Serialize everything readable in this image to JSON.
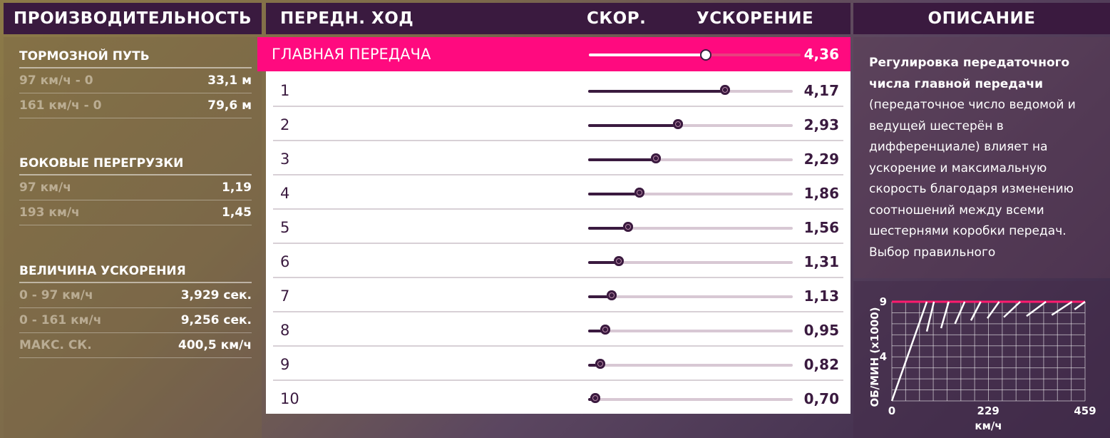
{
  "performance": {
    "header": "ПРОИЗВОДИТЕЛЬНОСТЬ",
    "sections": [
      {
        "title": "ТОРМОЗНОЙ ПУТЬ",
        "rows": [
          {
            "label": "97 км/ч - 0",
            "value": "33,1 м"
          },
          {
            "label": "161 км/ч - 0",
            "value": "79,6 м"
          }
        ]
      },
      {
        "title": "БОКОВЫЕ ПЕРЕГРУЗКИ",
        "rows": [
          {
            "label": "97 км/ч",
            "value": "1,19"
          },
          {
            "label": "193 км/ч",
            "value": "1,45"
          }
        ]
      },
      {
        "title": "ВЕЛИЧИНА УСКОРЕНИЯ",
        "rows": [
          {
            "label": "0 - 97 км/ч",
            "value": "3,929 сек."
          },
          {
            "label": "0 - 161 км/ч",
            "value": "9,256 сек."
          },
          {
            "label": "МАКС. СК.",
            "value": "400,5 км/ч"
          }
        ]
      }
    ]
  },
  "gearing": {
    "header": "ПЕРЕДН. ХОД",
    "col_speed": "СКОР.",
    "col_accel": "УСКОРЕНИЕ",
    "final_drive": {
      "label": "ГЛАВНАЯ ПЕРЕДАЧА",
      "value": "4,36",
      "level": 0.55
    },
    "gears": [
      {
        "label": "1",
        "value": "4,17",
        "level": 0.67
      },
      {
        "label": "2",
        "value": "2,93",
        "level": 0.44
      },
      {
        "label": "3",
        "value": "2,29",
        "level": 0.33
      },
      {
        "label": "4",
        "value": "1,86",
        "level": 0.25
      },
      {
        "label": "5",
        "value": "1,56",
        "level": 0.195
      },
      {
        "label": "6",
        "value": "1,31",
        "level": 0.15
      },
      {
        "label": "7",
        "value": "1,13",
        "level": 0.115
      },
      {
        "label": "8",
        "value": "0,95",
        "level": 0.085
      },
      {
        "label": "9",
        "value": "0,82",
        "level": 0.06
      },
      {
        "label": "10",
        "value": "0,70",
        "level": 0.035
      }
    ],
    "colors": {
      "accent": "#ff0a7f",
      "knob": "#3a1a3f",
      "track": "#d8c8d4"
    }
  },
  "description": {
    "header": "ОПИСАНИЕ",
    "bold": "Регулировка передаточного числа главной передачи",
    "text": "(передаточное число ведомой и ведущей шестерён в дифференциале) влияет на ускорение и максимальную скорость благодаря изменению соотношений между всеми шестернями коробки передач. Выбор правильного"
  },
  "chart_data": {
    "type": "line",
    "ylabel": "ОБ/МИН (x1000)",
    "xlabel": "км/ч",
    "x_ticks": [
      "0",
      "229",
      "459"
    ],
    "y_ticks": [
      "9",
      "4"
    ],
    "xlim": [
      0,
      459
    ],
    "ylim": [
      0,
      9
    ],
    "redline": 9,
    "series": [
      {
        "x": [
          0,
          83
        ],
        "y": [
          0,
          9
        ]
      },
      {
        "x": [
          83,
          100
        ],
        "y": [
          6.3,
          9
        ]
      },
      {
        "x": [
          117,
          135
        ],
        "y": [
          6.6,
          9
        ]
      },
      {
        "x": [
          150,
          173
        ],
        "y": [
          7.0,
          9
        ]
      },
      {
        "x": [
          188,
          211
        ],
        "y": [
          7.3,
          9
        ]
      },
      {
        "x": [
          227,
          255
        ],
        "y": [
          7.5,
          9
        ]
      },
      {
        "x": [
          266,
          305
        ],
        "y": [
          7.6,
          9
        ]
      },
      {
        "x": [
          320,
          366
        ],
        "y": [
          7.7,
          9
        ]
      },
      {
        "x": [
          380,
          428
        ],
        "y": [
          7.8,
          9
        ]
      },
      {
        "x": [
          434,
          459
        ],
        "y": [
          8.3,
          9
        ]
      }
    ]
  }
}
